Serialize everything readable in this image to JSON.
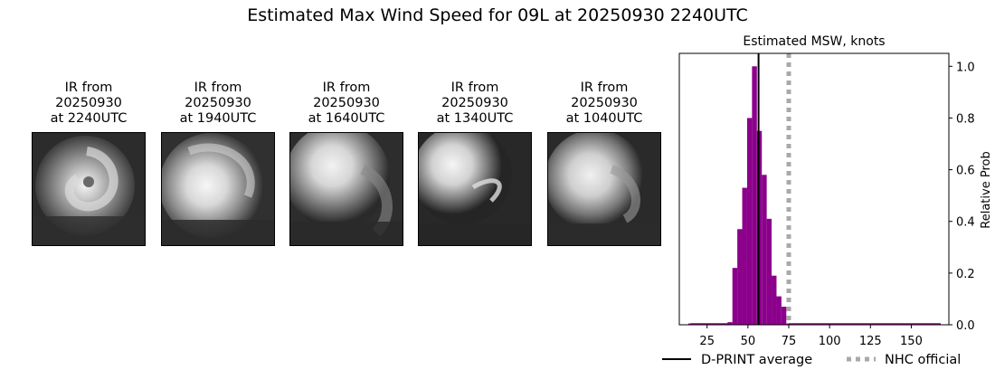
{
  "figure": {
    "suptitle": "Estimated Max Wind Speed for 09L at 20250930 2240UTC"
  },
  "panels": [
    {
      "line1": "IR from",
      "line2": "20250930",
      "line3": "at 2240UTC"
    },
    {
      "line1": "IR from",
      "line2": "20250930",
      "line3": "at 1940UTC"
    },
    {
      "line1": "IR from",
      "line2": "20250930",
      "line3": "at 1640UTC"
    },
    {
      "line1": "IR from",
      "line2": "20250930",
      "line3": "at 1340UTC"
    },
    {
      "line1": "IR from",
      "line2": "20250930",
      "line3": "at 1040UTC"
    }
  ],
  "chart_data": {
    "type": "bar",
    "title": "Estimated MSW, knots",
    "xlabel": "",
    "ylabel": "Relative Prob",
    "xlim": [
      8,
      173
    ],
    "ylim": [
      0,
      1.05
    ],
    "xticks": [
      25,
      50,
      75,
      100,
      125,
      150
    ],
    "yticks": [
      0.0,
      0.2,
      0.4,
      0.6,
      0.8,
      1.0
    ],
    "y_axis_side": "right",
    "bar_color": "#8b008b",
    "bin_width": 3,
    "histogram": [
      {
        "x": 15,
        "value": 0.005
      },
      {
        "x": 18,
        "value": 0.005
      },
      {
        "x": 21,
        "value": 0.005
      },
      {
        "x": 24,
        "value": 0.005
      },
      {
        "x": 27,
        "value": 0.005
      },
      {
        "x": 30,
        "value": 0.005
      },
      {
        "x": 33,
        "value": 0.005
      },
      {
        "x": 36,
        "value": 0.005
      },
      {
        "x": 39,
        "value": 0.01
      },
      {
        "x": 42,
        "value": 0.22
      },
      {
        "x": 45,
        "value": 0.37
      },
      {
        "x": 48,
        "value": 0.53
      },
      {
        "x": 51,
        "value": 0.8
      },
      {
        "x": 54,
        "value": 1.0
      },
      {
        "x": 57,
        "value": 0.75
      },
      {
        "x": 60,
        "value": 0.58
      },
      {
        "x": 63,
        "value": 0.41
      },
      {
        "x": 66,
        "value": 0.19
      },
      {
        "x": 69,
        "value": 0.11
      },
      {
        "x": 72,
        "value": 0.07
      },
      {
        "x": 75,
        "value": 0.005
      },
      {
        "x": 90,
        "value": 0.005
      },
      {
        "x": 105,
        "value": 0.005
      },
      {
        "x": 120,
        "value": 0.005
      },
      {
        "x": 135,
        "value": 0.005
      },
      {
        "x": 150,
        "value": 0.005
      },
      {
        "x": 165,
        "value": 0.005
      }
    ],
    "dprint_average": 56.5,
    "nhc_official": 75,
    "legend": [
      {
        "label": "D-PRINT average",
        "color": "#000000",
        "style": "solid"
      },
      {
        "label": "NHC official",
        "color": "#a9a9a9",
        "style": "dotted"
      }
    ],
    "legend_placement": "bottom"
  }
}
